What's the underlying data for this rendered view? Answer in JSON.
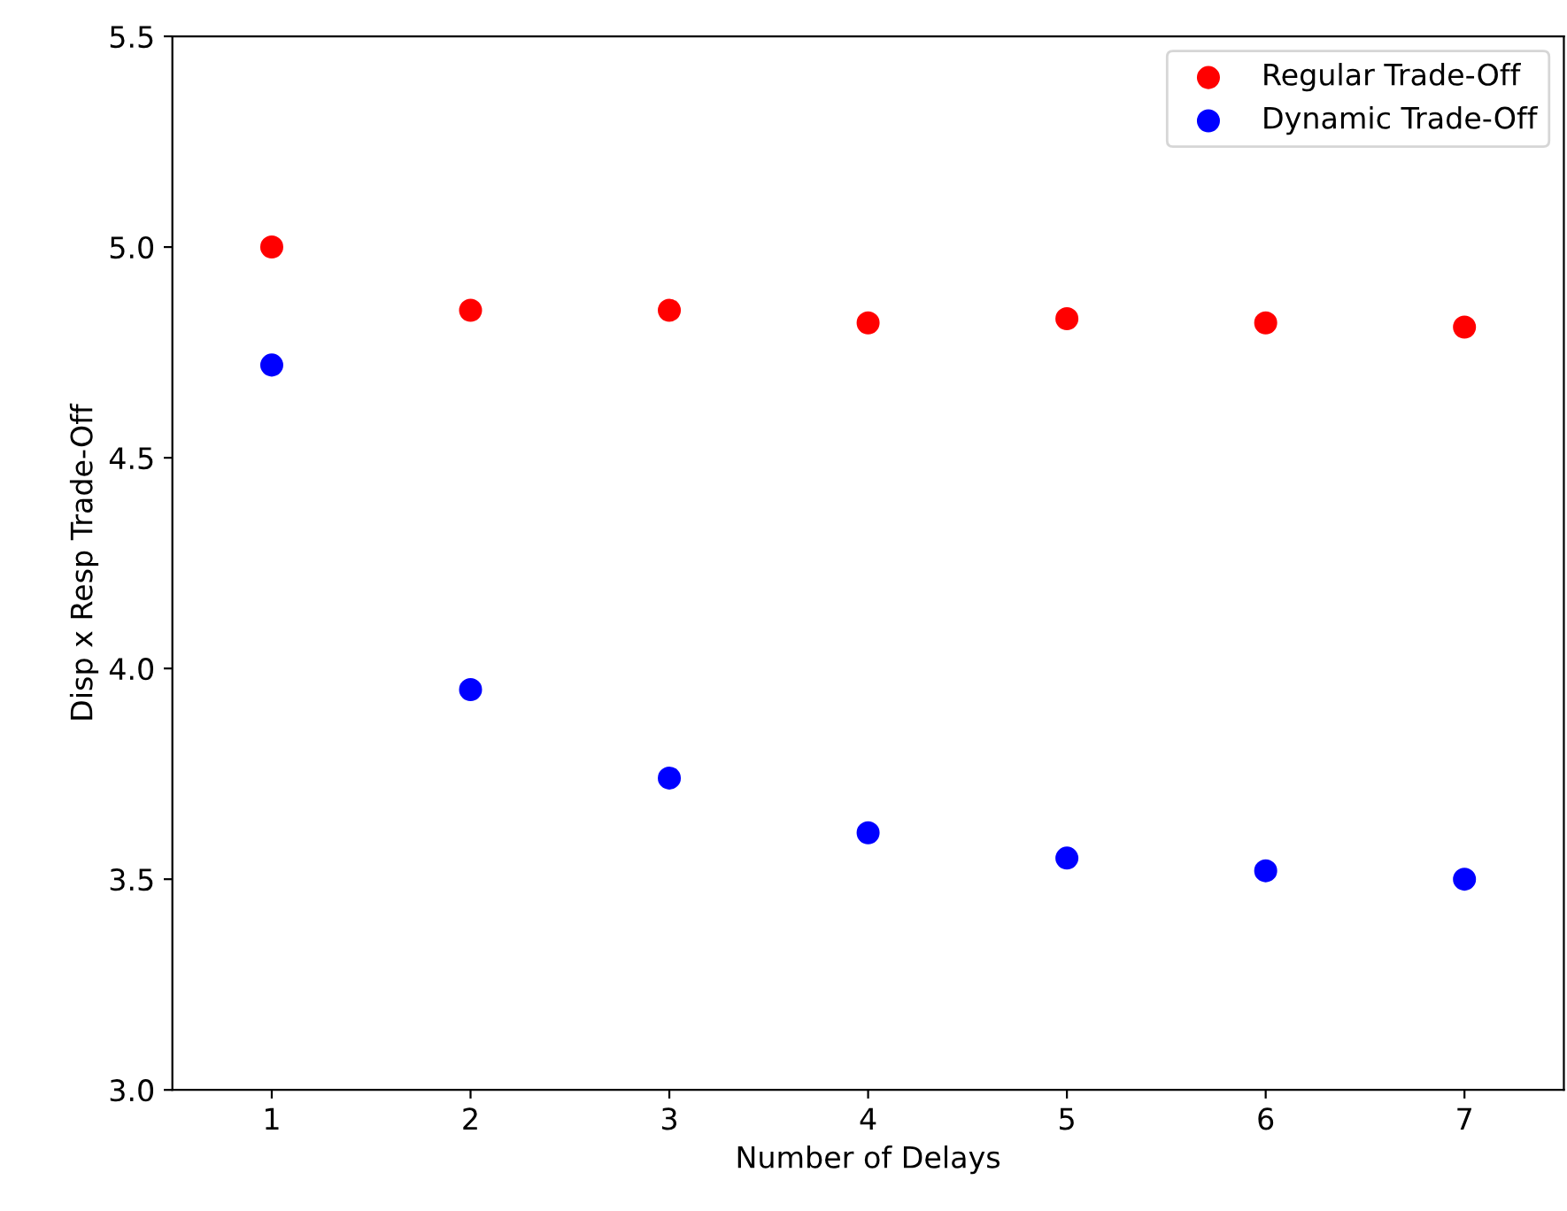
{
  "chart_data": {
    "type": "scatter",
    "xlabel": "Number of Delays",
    "ylabel": "Disp x Resp Trade-Off",
    "x": [
      1,
      2,
      3,
      4,
      5,
      6,
      7
    ],
    "series": [
      {
        "name": "Regular Trade-Off",
        "color": "#ff0000",
        "values": [
          5.0,
          4.85,
          4.85,
          4.82,
          4.83,
          4.82,
          4.81
        ]
      },
      {
        "name": "Dynamic Trade-Off",
        "color": "#0000ff",
        "values": [
          4.72,
          3.95,
          3.74,
          3.61,
          3.55,
          3.52,
          3.5
        ]
      }
    ],
    "xlim": [
      0.5,
      7.5
    ],
    "xticks": [
      1,
      2,
      3,
      4,
      5,
      6,
      7
    ],
    "ylim": [
      3.0,
      5.5
    ],
    "yticks": [
      {
        "value": 3.0,
        "label": "3.0"
      },
      {
        "value": 3.5,
        "label": "3.5"
      },
      {
        "value": 4.0,
        "label": "4.0"
      },
      {
        "value": 4.5,
        "label": "4.5"
      },
      {
        "value": 5.0,
        "label": "5.0"
      },
      {
        "value": 5.5,
        "label": "5.5"
      }
    ],
    "legend": "upper right",
    "marker": "circle",
    "grid": false
  }
}
